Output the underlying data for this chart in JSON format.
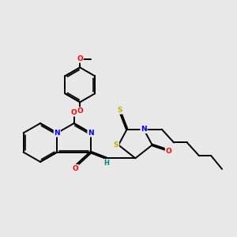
{
  "background_color": "#e8e8e8",
  "atom_colors": {
    "N": "#0000ff",
    "O": "#ff0000",
    "S": "#ccaa00",
    "C": "#000000",
    "H": "#008080"
  },
  "bond_color": "#000000",
  "figsize": [
    3.0,
    3.0
  ],
  "dpi": 100
}
